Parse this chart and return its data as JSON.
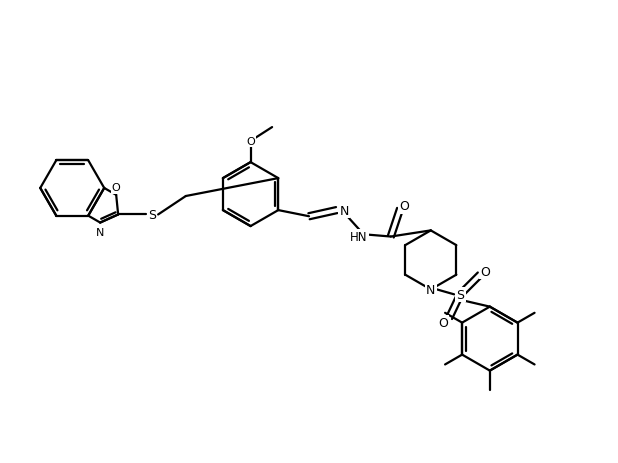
{
  "background_color": "#ffffff",
  "line_color": "#000000",
  "line_width": 1.6,
  "figsize": [
    6.18,
    4.64
  ],
  "dpi": 100,
  "xlim": [
    0,
    10
  ],
  "ylim": [
    0,
    7.5
  ]
}
